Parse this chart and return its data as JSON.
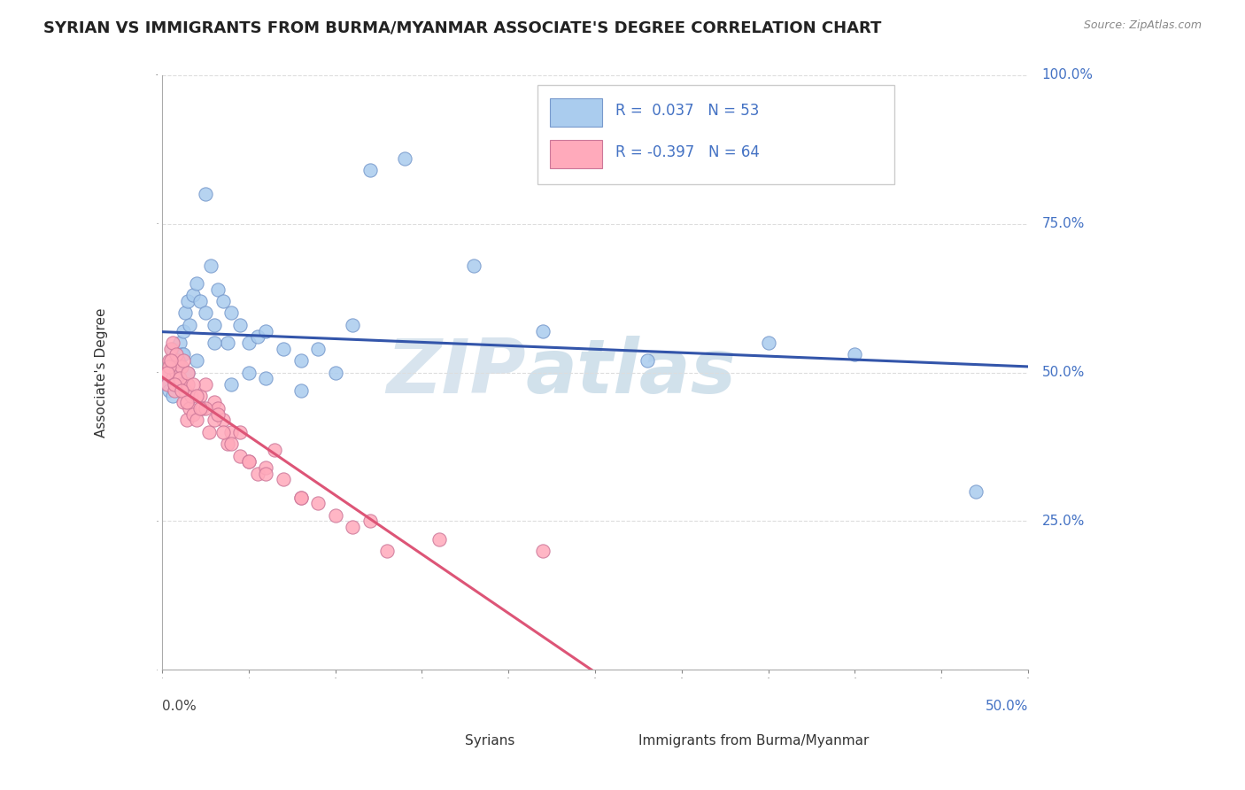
{
  "title": "SYRIAN VS IMMIGRANTS FROM BURMA/MYANMAR ASSOCIATE'S DEGREE CORRELATION CHART",
  "source_text": "Source: ZipAtlas.com",
  "ylabel_label": "Associate's Degree",
  "r_box": {
    "r1": "0.037",
    "n1": "53",
    "r2": "-0.397",
    "n2": "64",
    "color1": "#aaccee",
    "color2": "#ffaabb"
  },
  "blue_line_color": "#3355aa",
  "pink_line_color": "#dd5577",
  "dashed_line_color": "#ddaaaa",
  "dot_blue_face": "#aaccee",
  "dot_blue_edge": "#7799cc",
  "dot_pink_face": "#ffaabb",
  "dot_pink_edge": "#cc7799",
  "background_color": "#ffffff",
  "grid_color": "#dddddd",
  "watermark_color": "#c5d8ea",
  "title_fontsize": 13,
  "right_label_color": "#4472c4",
  "axis_tick_color": "#888888",
  "syrians_x": [
    0.3,
    0.4,
    0.5,
    0.6,
    0.7,
    0.8,
    0.9,
    1.0,
    1.1,
    1.2,
    1.3,
    1.5,
    1.6,
    1.8,
    2.0,
    2.2,
    2.5,
    2.8,
    3.0,
    3.2,
    3.5,
    3.8,
    4.0,
    4.5,
    5.0,
    5.5,
    6.0,
    7.0,
    8.0,
    9.0,
    10.0,
    11.0,
    12.0,
    14.0,
    18.0,
    22.0,
    28.0,
    35.0,
    40.0,
    47.0,
    0.4,
    0.6,
    0.8,
    1.0,
    1.2,
    1.5,
    2.0,
    2.5,
    3.0,
    4.0,
    5.0,
    6.0,
    8.0
  ],
  "syrians_y": [
    48,
    50,
    52,
    54,
    50,
    51,
    49,
    55,
    53,
    57,
    60,
    62,
    58,
    63,
    65,
    62,
    80,
    68,
    58,
    64,
    62,
    55,
    60,
    58,
    55,
    56,
    57,
    54,
    52,
    54,
    50,
    58,
    84,
    86,
    68,
    57,
    52,
    55,
    53,
    30,
    47,
    46,
    48,
    51,
    53,
    50,
    52,
    60,
    55,
    48,
    50,
    49,
    47
  ],
  "burma_x": [
    0.2,
    0.3,
    0.4,
    0.5,
    0.6,
    0.7,
    0.8,
    0.9,
    1.0,
    1.1,
    1.2,
    1.3,
    1.4,
    1.5,
    1.6,
    1.7,
    1.8,
    2.0,
    2.2,
    2.3,
    2.5,
    2.7,
    3.0,
    3.2,
    3.5,
    3.8,
    4.0,
    4.5,
    5.0,
    5.5,
    6.0,
    7.0,
    8.0,
    9.0,
    10.0,
    11.0,
    13.0,
    16.0,
    22.0,
    0.4,
    0.6,
    0.8,
    1.0,
    1.2,
    1.5,
    1.8,
    2.0,
    2.5,
    3.0,
    3.5,
    4.0,
    5.0,
    6.0,
    8.0,
    12.0,
    0.3,
    0.5,
    0.7,
    1.1,
    1.4,
    2.2,
    3.2,
    4.5,
    6.5
  ],
  "burma_y": [
    50,
    48,
    52,
    54,
    49,
    47,
    50,
    52,
    48,
    51,
    45,
    47,
    42,
    48,
    44,
    46,
    43,
    42,
    46,
    44,
    48,
    40,
    45,
    44,
    42,
    38,
    40,
    36,
    35,
    33,
    34,
    32,
    29,
    28,
    26,
    24,
    20,
    22,
    20,
    51,
    55,
    53,
    49,
    52,
    50,
    48,
    46,
    44,
    42,
    40,
    38,
    35,
    33,
    29,
    25,
    50,
    52,
    48,
    47,
    45,
    44,
    43,
    40,
    37
  ]
}
